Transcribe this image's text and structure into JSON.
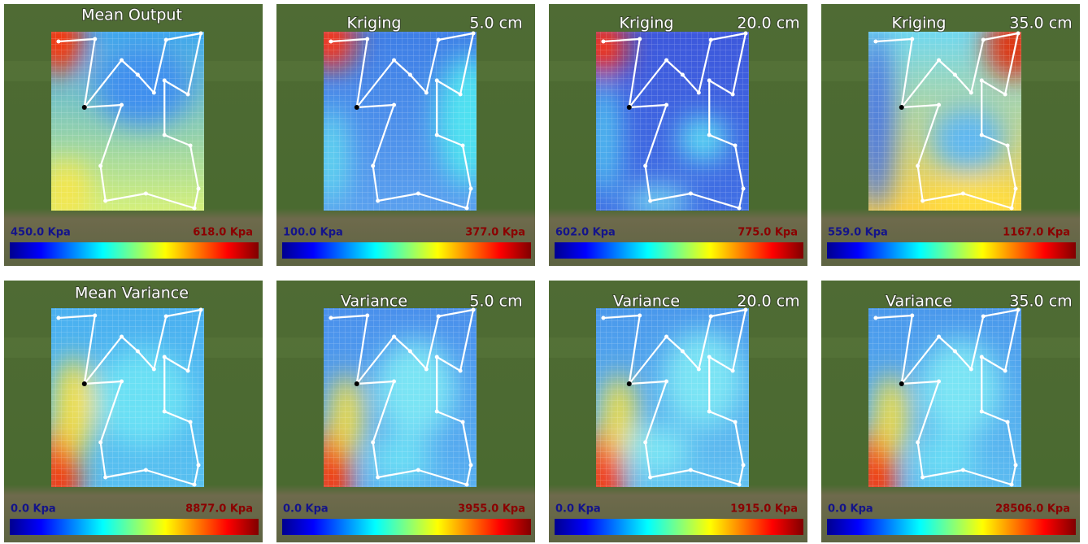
{
  "panels": [
    {
      "title": "Mean Output",
      "min_label": "450.0 Kpa",
      "max_label": "618.0 Kpa"
    },
    {
      "title": "Kriging",
      "depth": "5.0 cm",
      "min_label": "100.0 Kpa",
      "max_label": "377.0 Kpa"
    },
    {
      "title": "Kriging",
      "depth": "20.0 cm",
      "min_label": "602.0 Kpa",
      "max_label": "775.0 Kpa"
    },
    {
      "title": "Kriging",
      "depth": "35.0 cm",
      "min_label": "559.0 Kpa",
      "max_label": "1167.0 Kpa"
    },
    {
      "title": "Mean Variance",
      "min_label": "0.0 Kpa",
      "max_label": "8877.0 Kpa"
    },
    {
      "title": "Variance",
      "depth": "5.0 cm",
      "min_label": "0.0 Kpa",
      "max_label": "3955.0 Kpa"
    },
    {
      "title": "Variance",
      "depth": "20.0 cm",
      "min_label": "0.0 Kpa",
      "max_label": "1915.0 Kpa"
    },
    {
      "title": "Variance",
      "depth": "35.0 cm",
      "min_label": "0.0 Kpa",
      "max_label": "28506.0 Kpa"
    }
  ]
}
